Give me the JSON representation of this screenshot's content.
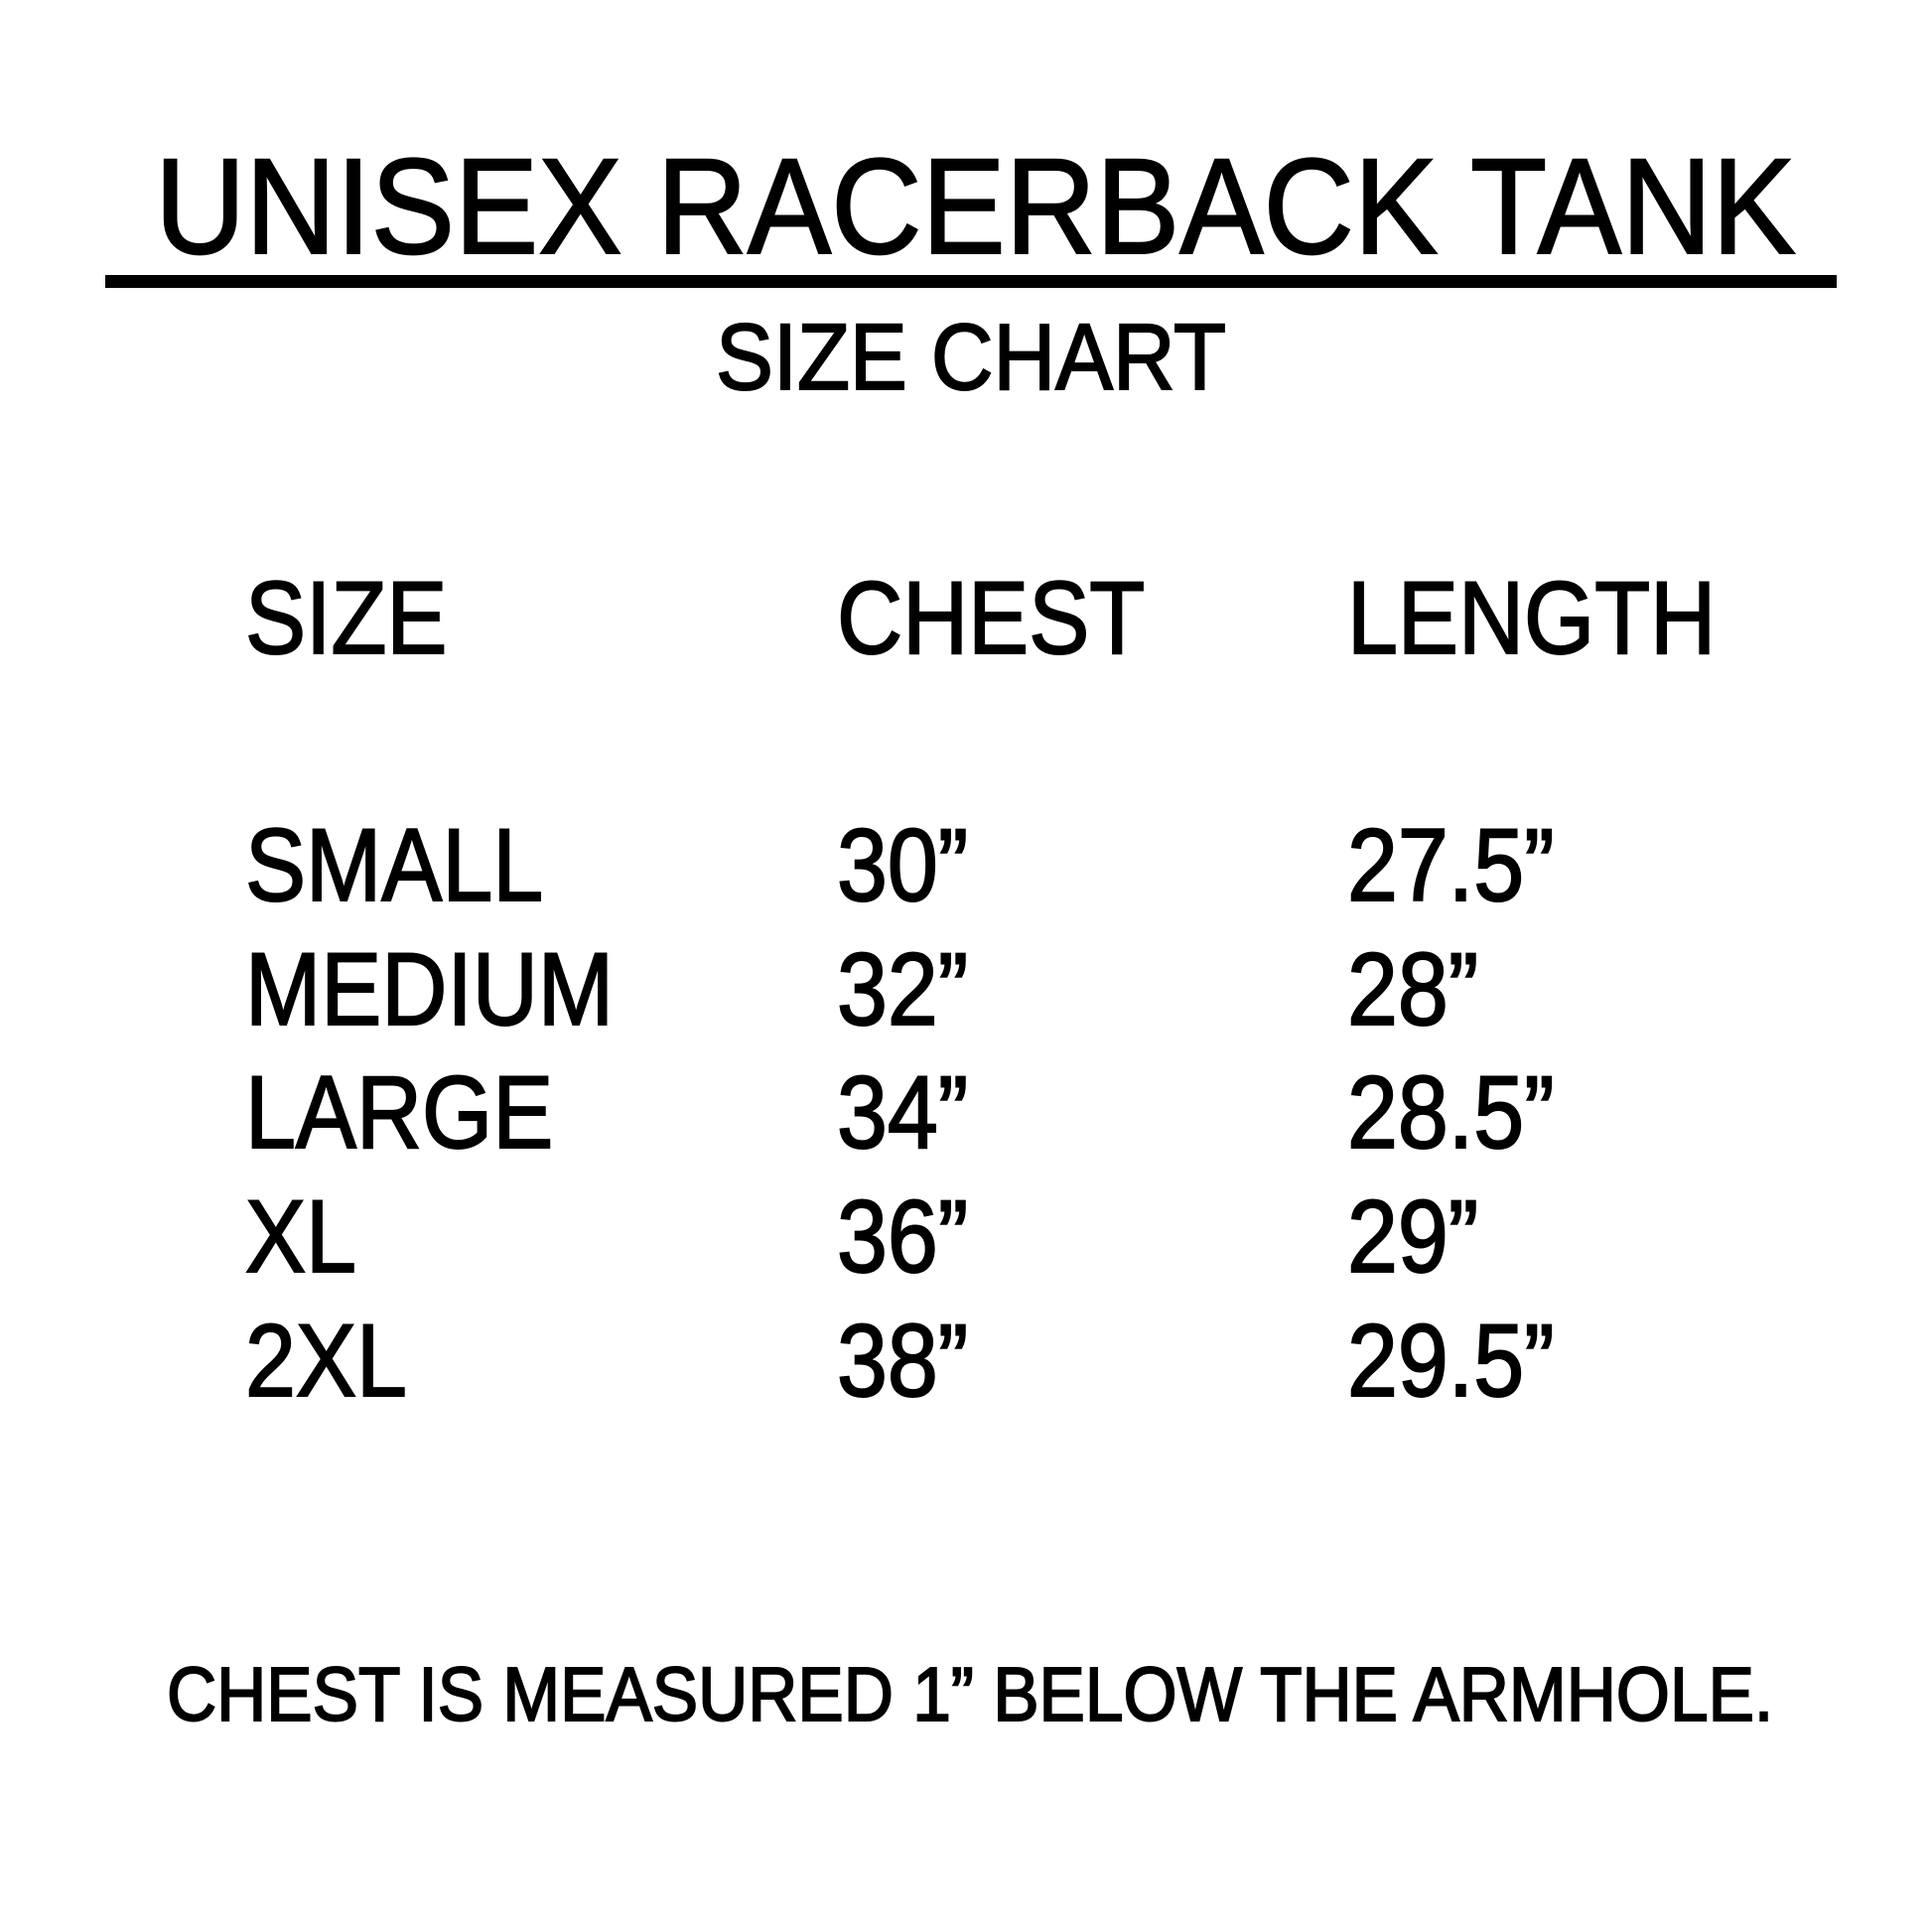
{
  "title": "UNISEX RACERBACK TANK",
  "subtitle": "SIZE CHART",
  "table": {
    "headers": [
      "SIZE",
      "CHEST",
      "LENGTH"
    ],
    "rows": [
      [
        "SMALL",
        "30”",
        "27.5”"
      ],
      [
        "MEDIUM",
        "32”",
        "28”"
      ],
      [
        "LARGE",
        "34”",
        "28.5”"
      ],
      [
        "XL",
        "36”",
        "29”"
      ],
      [
        "2XL",
        "38”",
        "29.5”"
      ]
    ]
  },
  "footnote": "CHEST IS MEASURED 1” BELOW THE ARMHOLE."
}
